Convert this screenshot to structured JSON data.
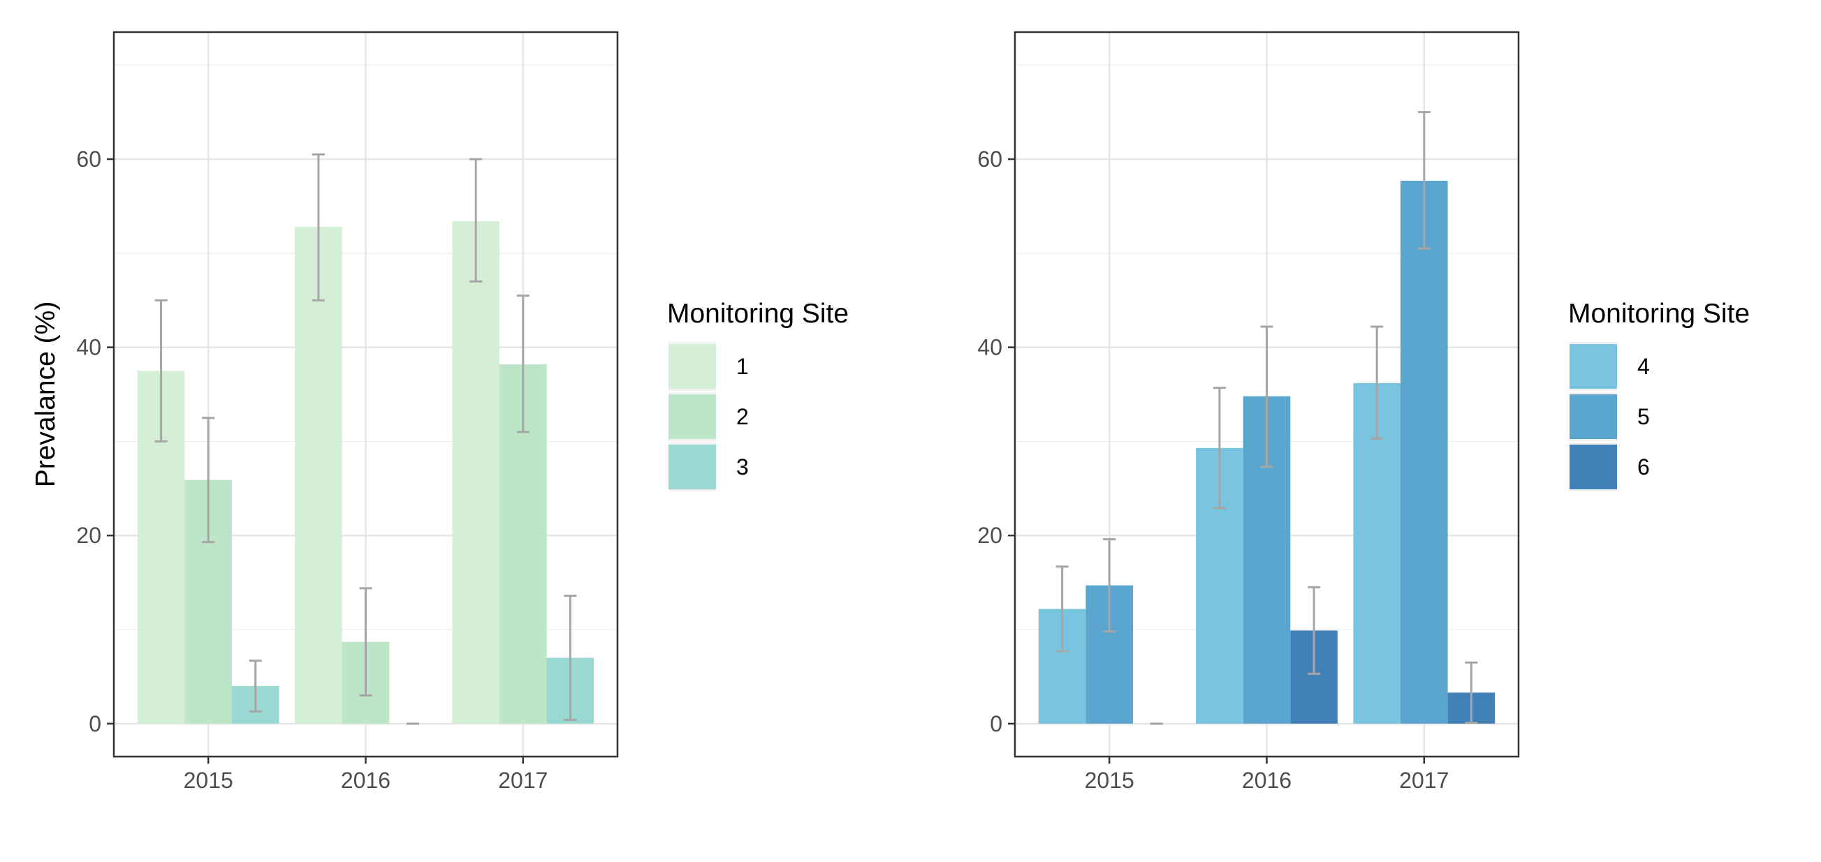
{
  "chart_data": [
    {
      "type": "bar",
      "panel": "left",
      "categories": [
        "2015",
        "2016",
        "2017"
      ],
      "ylabel": "Prevalance (%)",
      "xlabel": "",
      "ylim": [
        -3.5,
        73.5
      ],
      "yticks": [
        0,
        20,
        40,
        60
      ],
      "grid": true,
      "legend": {
        "title": "Monitoring Site",
        "placement": "right"
      },
      "series": [
        {
          "name": "1",
          "color": "#d5efd6",
          "values": [
            37.5,
            52.8,
            53.4
          ],
          "err_low": [
            30.0,
            45.0,
            47.0
          ],
          "err_high": [
            45.0,
            60.5,
            60.0
          ]
        },
        {
          "name": "2",
          "color": "#bde6c8",
          "values": [
            25.9,
            8.7,
            38.2
          ],
          "err_low": [
            19.3,
            3.0,
            31.0
          ],
          "err_high": [
            32.5,
            14.4,
            45.5
          ]
        },
        {
          "name": "3",
          "color": "#9ad9d2",
          "values": [
            4.0,
            0.0,
            7.0
          ],
          "err_low": [
            1.3,
            0.0,
            0.4
          ],
          "err_high": [
            6.7,
            0.0,
            13.6
          ]
        }
      ]
    },
    {
      "type": "bar",
      "panel": "right",
      "categories": [
        "2015",
        "2016",
        "2017"
      ],
      "ylabel": "",
      "xlabel": "",
      "ylim": [
        -3.5,
        73.5
      ],
      "yticks": [
        0,
        20,
        40,
        60
      ],
      "grid": true,
      "legend": {
        "title": "Monitoring Site",
        "placement": "right"
      },
      "series": [
        {
          "name": "4",
          "color": "#79c5df",
          "values": [
            12.2,
            29.3,
            36.2
          ],
          "err_low": [
            7.7,
            22.9,
            30.3
          ],
          "err_high": [
            16.7,
            35.7,
            42.2
          ]
        },
        {
          "name": "5",
          "color": "#5aa6ce",
          "values": [
            14.7,
            34.8,
            57.7
          ],
          "err_low": [
            9.8,
            27.3,
            50.5
          ],
          "err_high": [
            19.6,
            42.2,
            65.0
          ]
        },
        {
          "name": "6",
          "color": "#4281b8",
          "values": [
            0.0,
            9.9,
            3.3
          ],
          "err_low": [
            0.0,
            5.3,
            0.1
          ],
          "err_high": [
            0.0,
            14.5,
            6.5
          ]
        }
      ]
    }
  ]
}
